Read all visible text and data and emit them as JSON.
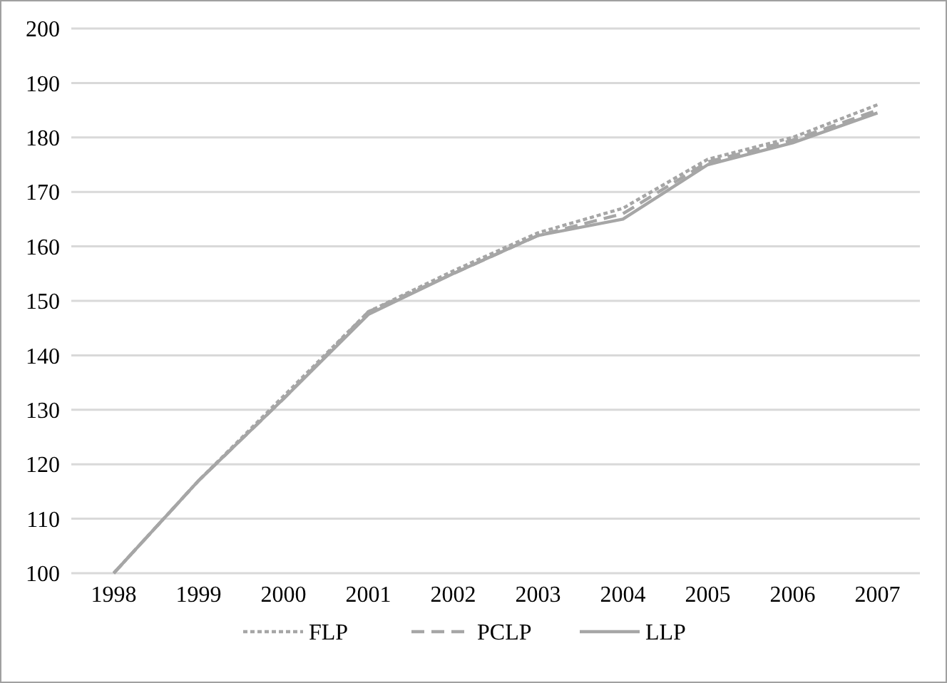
{
  "chart_data": {
    "type": "line",
    "categories": [
      "1998",
      "1999",
      "2000",
      "2001",
      "2002",
      "2003",
      "2004",
      "2005",
      "2006",
      "2007"
    ],
    "series": [
      {
        "name": "FLP",
        "color": "#a6a6a6",
        "line_style": "dotted",
        "values": [
          100,
          117,
          132.5,
          148,
          155.5,
          162.5,
          167,
          176,
          180,
          186
        ]
      },
      {
        "name": "PCLP",
        "color": "#a6a6a6",
        "line_style": "dashed",
        "values": [
          100,
          117,
          132,
          148,
          155,
          162,
          166,
          175.5,
          179.5,
          185
        ]
      },
      {
        "name": "LLP",
        "color": "#a6a6a6",
        "line_style": "solid",
        "values": [
          100,
          117,
          132,
          147.5,
          155,
          162,
          165,
          175,
          179,
          184.5
        ]
      }
    ],
    "ylim": [
      100,
      200
    ],
    "yticks": [
      100,
      110,
      120,
      130,
      140,
      150,
      160,
      170,
      180,
      190,
      200
    ],
    "grid": "y",
    "legend": "bottom",
    "marker": "none"
  }
}
